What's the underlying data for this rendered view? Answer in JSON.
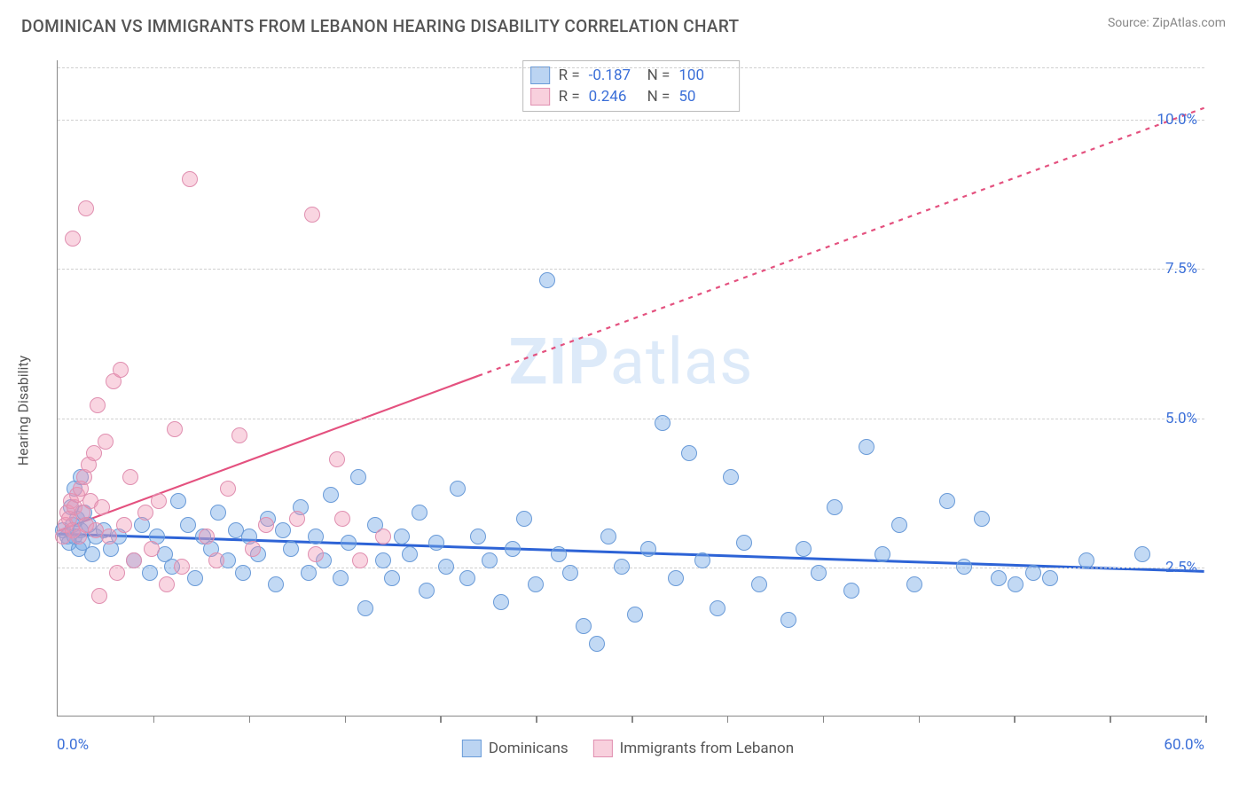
{
  "title": "DOMINICAN VS IMMIGRANTS FROM LEBANON HEARING DISABILITY CORRELATION CHART",
  "source": "Source: ZipAtlas.com",
  "watermark_a": "ZIP",
  "watermark_b": "atlas",
  "chart": {
    "type": "scatter",
    "ylabel": "Hearing Disability",
    "xlim": [
      0,
      60
    ],
    "ylim": [
      0,
      11
    ],
    "x_min_label": "0.0%",
    "x_max_label": "60.0%",
    "y_gridlines": [
      2.5,
      5.0,
      7.5,
      10.0
    ],
    "y_grid_labels": [
      "2.5%",
      "5.0%",
      "7.5%",
      "10.0%"
    ],
    "x_ticks": [
      5,
      10,
      15,
      20,
      25,
      30,
      35,
      40,
      45,
      50,
      55,
      60
    ],
    "background_color": "#ffffff",
    "grid_color": "#d0d0d0",
    "axis_color": "#888888",
    "value_color": "#3b6fd8",
    "series": [
      {
        "name": "Dominicans",
        "color_fill": "rgba(120,170,230,0.45)",
        "color_stroke": "#6a9bd8",
        "marker_size": 18,
        "r": -0.187,
        "n": 100,
        "trend": {
          "x1": 0,
          "y1": 3.05,
          "x2": 60,
          "y2": 2.42,
          "stroke": "#2d63d6",
          "width": 3,
          "dash": "none"
        },
        "points": [
          [
            0.3,
            3.1
          ],
          [
            0.5,
            3.0
          ],
          [
            0.6,
            2.9
          ],
          [
            0.8,
            3.2
          ],
          [
            0.9,
            3.0
          ],
          [
            1.0,
            3.3
          ],
          [
            1.1,
            2.8
          ],
          [
            1.2,
            3.1
          ],
          [
            1.3,
            2.9
          ],
          [
            1.4,
            3.4
          ],
          [
            1.6,
            3.2
          ],
          [
            1.8,
            2.7
          ],
          [
            2.0,
            3.0
          ],
          [
            2.4,
            3.1
          ],
          [
            2.8,
            2.8
          ],
          [
            3.2,
            3.0
          ],
          [
            0.7,
            3.5
          ],
          [
            0.9,
            3.8
          ],
          [
            1.2,
            4.0
          ],
          [
            4.0,
            2.6
          ],
          [
            4.4,
            3.2
          ],
          [
            4.8,
            2.4
          ],
          [
            5.2,
            3.0
          ],
          [
            5.6,
            2.7
          ],
          [
            6.0,
            2.5
          ],
          [
            6.3,
            3.6
          ],
          [
            6.8,
            3.2
          ],
          [
            7.2,
            2.3
          ],
          [
            7.6,
            3.0
          ],
          [
            8.0,
            2.8
          ],
          [
            8.4,
            3.4
          ],
          [
            8.9,
            2.6
          ],
          [
            9.3,
            3.1
          ],
          [
            9.7,
            2.4
          ],
          [
            10.0,
            3.0
          ],
          [
            10.5,
            2.7
          ],
          [
            11.0,
            3.3
          ],
          [
            11.4,
            2.2
          ],
          [
            11.8,
            3.1
          ],
          [
            12.2,
            2.8
          ],
          [
            12.7,
            3.5
          ],
          [
            13.1,
            2.4
          ],
          [
            13.5,
            3.0
          ],
          [
            13.9,
            2.6
          ],
          [
            14.3,
            3.7
          ],
          [
            14.8,
            2.3
          ],
          [
            15.2,
            2.9
          ],
          [
            15.7,
            4.0
          ],
          [
            16.1,
            1.8
          ],
          [
            16.6,
            3.2
          ],
          [
            17.0,
            2.6
          ],
          [
            17.5,
            2.3
          ],
          [
            18.0,
            3.0
          ],
          [
            18.4,
            2.7
          ],
          [
            18.9,
            3.4
          ],
          [
            19.3,
            2.1
          ],
          [
            19.8,
            2.9
          ],
          [
            20.3,
            2.5
          ],
          [
            20.9,
            3.8
          ],
          [
            21.4,
            2.3
          ],
          [
            22.0,
            3.0
          ],
          [
            22.6,
            2.6
          ],
          [
            23.2,
            1.9
          ],
          [
            23.8,
            2.8
          ],
          [
            24.4,
            3.3
          ],
          [
            25.0,
            2.2
          ],
          [
            25.6,
            7.3
          ],
          [
            26.2,
            2.7
          ],
          [
            26.8,
            2.4
          ],
          [
            27.5,
            1.5
          ],
          [
            28.2,
            1.2
          ],
          [
            28.8,
            3.0
          ],
          [
            29.5,
            2.5
          ],
          [
            30.2,
            1.7
          ],
          [
            30.9,
            2.8
          ],
          [
            31.6,
            4.9
          ],
          [
            32.3,
            2.3
          ],
          [
            33.0,
            4.4
          ],
          [
            33.7,
            2.6
          ],
          [
            34.5,
            1.8
          ],
          [
            35.2,
            4.0
          ],
          [
            35.9,
            2.9
          ],
          [
            36.7,
            2.2
          ],
          [
            38.2,
            1.6
          ],
          [
            39.0,
            2.8
          ],
          [
            39.8,
            2.4
          ],
          [
            40.6,
            3.5
          ],
          [
            41.5,
            2.1
          ],
          [
            42.3,
            4.5
          ],
          [
            43.1,
            2.7
          ],
          [
            44.0,
            3.2
          ],
          [
            44.8,
            2.2
          ],
          [
            46.5,
            3.6
          ],
          [
            47.4,
            2.5
          ],
          [
            48.3,
            3.3
          ],
          [
            49.2,
            2.3
          ],
          [
            50.1,
            2.2
          ],
          [
            51.0,
            2.4
          ],
          [
            51.9,
            2.3
          ],
          [
            53.8,
            2.6
          ],
          [
            56.7,
            2.7
          ]
        ]
      },
      {
        "name": "Immigrants from Lebanon",
        "color_fill": "rgba(240,150,180,0.4)",
        "color_stroke": "#e08fb0",
        "marker_size": 18,
        "r": 0.246,
        "n": 50,
        "trend": {
          "x1": 0,
          "y1": 3.1,
          "x2": 60,
          "y2": 10.2,
          "stroke": "#e4517f",
          "width": 2.2,
          "solid_until_x": 22,
          "dash": "5,6"
        },
        "points": [
          [
            0.3,
            3.0
          ],
          [
            0.4,
            3.2
          ],
          [
            0.5,
            3.4
          ],
          [
            0.6,
            3.3
          ],
          [
            0.7,
            3.6
          ],
          [
            0.8,
            3.1
          ],
          [
            0.9,
            3.5
          ],
          [
            1.0,
            3.7
          ],
          [
            1.1,
            3.0
          ],
          [
            1.2,
            3.8
          ],
          [
            1.3,
            3.4
          ],
          [
            1.4,
            4.0
          ],
          [
            1.5,
            3.2
          ],
          [
            1.6,
            4.2
          ],
          [
            1.7,
            3.6
          ],
          [
            1.9,
            4.4
          ],
          [
            2.0,
            3.1
          ],
          [
            2.1,
            5.2
          ],
          [
            2.3,
            3.5
          ],
          [
            2.5,
            4.6
          ],
          [
            2.7,
            3.0
          ],
          [
            2.9,
            5.6
          ],
          [
            3.1,
            2.4
          ],
          [
            3.3,
            5.8
          ],
          [
            3.5,
            3.2
          ],
          [
            3.8,
            4.0
          ],
          [
            4.0,
            2.6
          ],
          [
            0.8,
            8.0
          ],
          [
            1.5,
            8.5
          ],
          [
            4.6,
            3.4
          ],
          [
            4.9,
            2.8
          ],
          [
            5.3,
            3.6
          ],
          [
            5.7,
            2.2
          ],
          [
            6.1,
            4.8
          ],
          [
            6.5,
            2.5
          ],
          [
            6.9,
            9.0
          ],
          [
            2.2,
            2.0
          ],
          [
            7.8,
            3.0
          ],
          [
            8.3,
            2.6
          ],
          [
            8.9,
            3.8
          ],
          [
            9.5,
            4.7
          ],
          [
            10.2,
            2.8
          ],
          [
            10.9,
            3.2
          ],
          [
            13.3,
            8.4
          ],
          [
            12.5,
            3.3
          ],
          [
            13.5,
            2.7
          ],
          [
            14.6,
            4.3
          ],
          [
            14.9,
            3.3
          ],
          [
            15.8,
            2.6
          ],
          [
            17.0,
            3.0
          ]
        ]
      }
    ]
  },
  "legend_bottom": [
    {
      "label": "Dominicans",
      "swatch": "blue"
    },
    {
      "label": "Immigrants from Lebanon",
      "swatch": "pink"
    }
  ]
}
